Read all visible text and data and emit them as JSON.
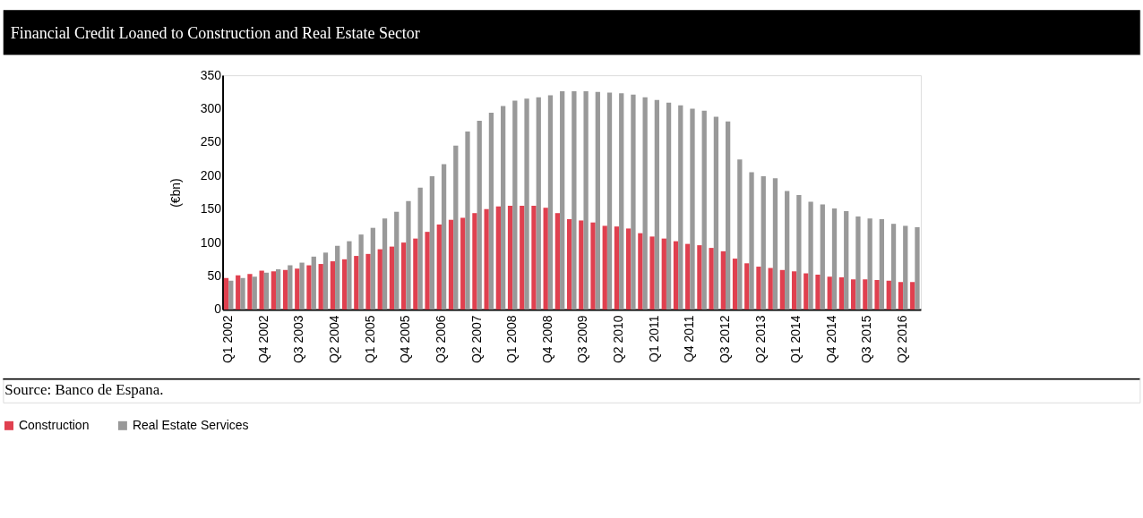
{
  "chart_data": {
    "type": "bar",
    "title": "Financial Credit Loaned to Construction and Real Estate Sector",
    "ylabel": "(€bn)",
    "categories": [
      "Q1 2002",
      null,
      null,
      "Q4 2002",
      null,
      null,
      "Q3 2003",
      null,
      null,
      "Q2 2004",
      null,
      null,
      "Q1 2005",
      null,
      null,
      "Q4 2005",
      null,
      null,
      "Q3 2006",
      null,
      null,
      "Q2 2007",
      null,
      null,
      "Q1 2008",
      null,
      null,
      "Q4 2008",
      null,
      null,
      "Q3 2009",
      null,
      null,
      "Q2 2010",
      null,
      null,
      "Q1 2011",
      null,
      null,
      "Q4 2011",
      null,
      null,
      "Q3 2012",
      null,
      null,
      "Q2 2013",
      null,
      null,
      "Q1 2014",
      null,
      null,
      "Q4 2014",
      null,
      null,
      "Q3 2015",
      null,
      null,
      "Q2 2016",
      null
    ],
    "series": [
      {
        "name": "Construction",
        "color": "#e0404f",
        "values": [
          47,
          51,
          53,
          58,
          57,
          59,
          61,
          66,
          68,
          72,
          75,
          80,
          83,
          90,
          94,
          100,
          106,
          116,
          127,
          134,
          137,
          144,
          150,
          154,
          155,
          155,
          155,
          152,
          144,
          135,
          133,
          130,
          125,
          124,
          121,
          114,
          109,
          106,
          102,
          98,
          96,
          92,
          87,
          76,
          69,
          64,
          62,
          59,
          57,
          54,
          52,
          49,
          48,
          45,
          45,
          44,
          43,
          41,
          41
        ]
      },
      {
        "name": "Real Estate Services",
        "color": "#999999",
        "values": [
          43,
          47,
          49,
          55,
          60,
          66,
          70,
          79,
          85,
          95,
          102,
          112,
          122,
          136,
          146,
          162,
          182,
          199,
          217,
          245,
          266,
          282,
          294,
          304,
          312,
          315,
          317,
          320,
          326,
          326,
          326,
          325,
          324,
          323,
          321,
          317,
          313,
          309,
          305,
          300,
          297,
          288,
          281,
          224,
          205,
          199,
          196,
          177,
          171,
          161,
          157,
          151,
          147,
          139,
          136,
          135,
          128,
          125,
          123
        ]
      }
    ],
    "ylim": [
      0,
      350
    ],
    "yticks": [
      0,
      50,
      100,
      150,
      200,
      250,
      300,
      350
    ],
    "grid": false,
    "legend": "bottom",
    "annotations": [
      "Source: Banco de Espana."
    ]
  }
}
